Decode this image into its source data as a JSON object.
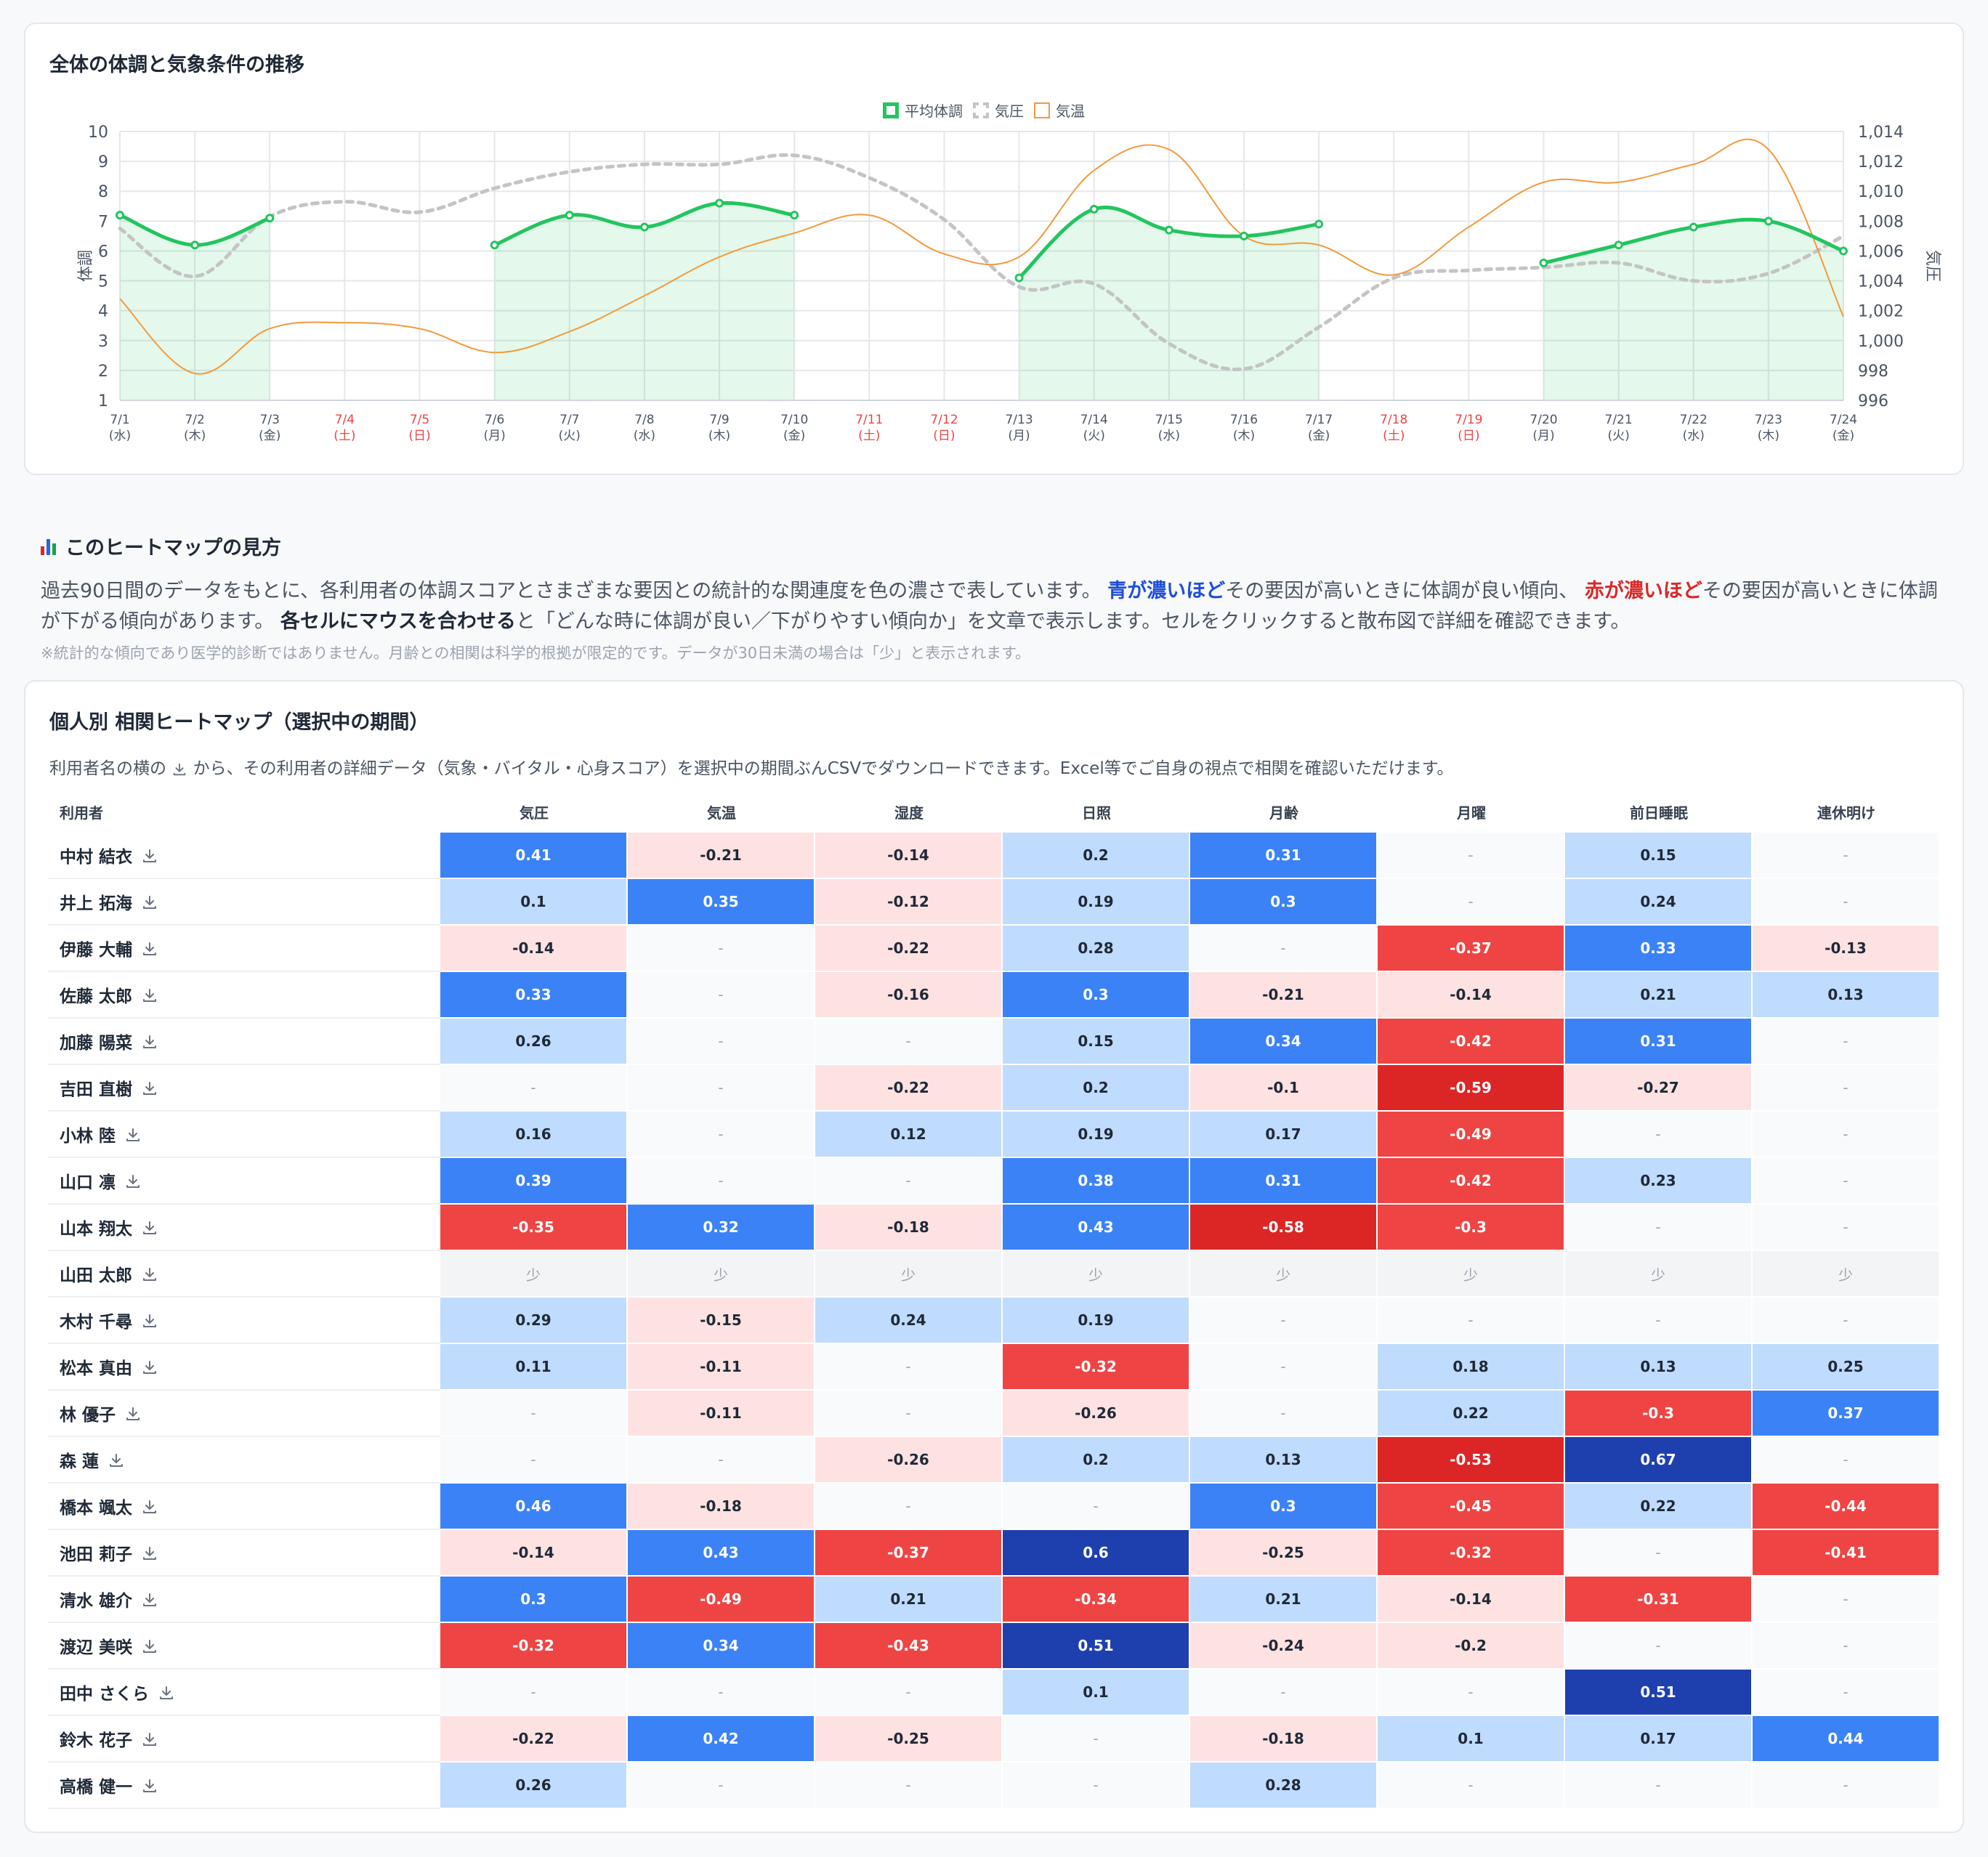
{
  "chart_card": {
    "title": "全体の体調と気象条件の推移",
    "legend": [
      {
        "label": "平均体調",
        "color": "#22c55e"
      },
      {
        "label": "気圧",
        "color": "#c4c4c4"
      },
      {
        "label": "気温",
        "color": "#f39a3c"
      }
    ],
    "y_left_label": "体調",
    "y_right_label": "気圧",
    "y_left_ticks": [
      "10",
      "9",
      "8",
      "7",
      "6",
      "5",
      "4",
      "3",
      "2",
      "1"
    ],
    "y_right_ticks": [
      "1,014",
      "1,012",
      "1,010",
      "1,008",
      "1,006",
      "1,004",
      "1,002",
      "1,000",
      "998",
      "996"
    ]
  },
  "chart_data": {
    "type": "line",
    "title": "全体の体調と気象条件の推移",
    "x": [
      {
        "date": "7/1",
        "dow": "(水)",
        "weekend": false
      },
      {
        "date": "7/2",
        "dow": "(木)",
        "weekend": false
      },
      {
        "date": "7/3",
        "dow": "(金)",
        "weekend": false
      },
      {
        "date": "7/4",
        "dow": "(土)",
        "weekend": true
      },
      {
        "date": "7/5",
        "dow": "(日)",
        "weekend": true
      },
      {
        "date": "7/6",
        "dow": "(月)",
        "weekend": false
      },
      {
        "date": "7/7",
        "dow": "(火)",
        "weekend": false
      },
      {
        "date": "7/8",
        "dow": "(水)",
        "weekend": false
      },
      {
        "date": "7/9",
        "dow": "(木)",
        "weekend": false
      },
      {
        "date": "7/10",
        "dow": "(金)",
        "weekend": false
      },
      {
        "date": "7/11",
        "dow": "(土)",
        "weekend": true
      },
      {
        "date": "7/12",
        "dow": "(日)",
        "weekend": true
      },
      {
        "date": "7/13",
        "dow": "(月)",
        "weekend": false
      },
      {
        "date": "7/14",
        "dow": "(火)",
        "weekend": false
      },
      {
        "date": "7/15",
        "dow": "(水)",
        "weekend": false
      },
      {
        "date": "7/16",
        "dow": "(木)",
        "weekend": false
      },
      {
        "date": "7/17",
        "dow": "(金)",
        "weekend": false
      },
      {
        "date": "7/18",
        "dow": "(土)",
        "weekend": true
      },
      {
        "date": "7/19",
        "dow": "(日)",
        "weekend": true
      },
      {
        "date": "7/20",
        "dow": "(月)",
        "weekend": false
      },
      {
        "date": "7/21",
        "dow": "(火)",
        "weekend": false
      },
      {
        "date": "7/22",
        "dow": "(水)",
        "weekend": false
      },
      {
        "date": "7/23",
        "dow": "(木)",
        "weekend": false
      },
      {
        "date": "7/24",
        "dow": "(金)",
        "weekend": false
      }
    ],
    "ylim_left": [
      1,
      10
    ],
    "ylim_right": [
      996,
      1014
    ],
    "grid": true,
    "legend_position": "top-center",
    "series": [
      {
        "name": "平均体調",
        "axis": "left",
        "color": "#22c55e",
        "values": [
          7.2,
          6.2,
          7.1,
          null,
          null,
          6.2,
          7.2,
          6.8,
          7.6,
          7.2,
          null,
          null,
          5.1,
          7.4,
          6.7,
          6.5,
          6.9,
          null,
          null,
          5.6,
          6.2,
          6.8,
          7.0,
          6.0
        ]
      },
      {
        "name": "気圧",
        "axis": "right",
        "color": "#c4c4c4",
        "values": [
          1007.5,
          1004.3,
          1008.3,
          1009.3,
          1008.6,
          1010.2,
          1011.3,
          1011.8,
          1011.8,
          1012.4,
          1010.9,
          1008.1,
          1003.6,
          1003.8,
          999.8,
          998.1,
          1000.9,
          1004.2,
          1004.7,
          1004.9,
          1005.2,
          1004.0,
          1004.5,
          1007.0
        ]
      },
      {
        "name": "気温",
        "axis": "left",
        "color": "#f39a3c",
        "values": [
          4.4,
          1.9,
          3.4,
          3.6,
          3.4,
          2.6,
          3.3,
          4.5,
          5.8,
          6.6,
          7.2,
          5.9,
          5.8,
          8.7,
          9.4,
          6.5,
          6.2,
          5.2,
          6.8,
          8.3,
          8.3,
          8.9,
          9.4,
          3.8
        ]
      }
    ]
  },
  "guide": {
    "title": "このヒートマップの見方",
    "p1": "過去90日間のデータをもとに、各利用者の体調スコアとさまざまな要因との統計的な関連度を色の濃さで表しています。",
    "blue_phrase": "青が濃いほど",
    "p2": "その要因が高いときに体調が良い傾向、",
    "red_phrase": "赤が濃いほど",
    "p3": "その要因が高いときに体調が下がる傾向があります。",
    "bold_phrase": "各セルにマウスを合わせる",
    "p4": "と「どんな時に体調が良い／下がりやすい傾向か」を文章で表示します。セルをクリックすると散布図で詳細を確認できます。",
    "note": "※統計的な傾向であり医学的診断ではありません。月齢との相関は科学的根拠が限定的です。データが30日未満の場合は「少」と表示されます。"
  },
  "heatmap": {
    "title": "個人別 相関ヒートマップ（選択中の期間）",
    "desc_before": "利用者名の横の",
    "desc_after": "から、その利用者の詳細データ（気象・バイタル・心身スコア）を選択中の期間ぶんCSVでダウンロードできます。Excel等でご自身の視点で相関を確認いただけます。",
    "name_header": "利用者",
    "columns": [
      "気圧",
      "気温",
      "湿度",
      "日照",
      "月齢",
      "月曜",
      "前日睡眠",
      "連休明け"
    ],
    "rows": [
      {
        "name": "中村 結衣",
        "values": [
          "0.41",
          "-0.21",
          "-0.14",
          "0.2",
          "0.31",
          "-",
          "0.15",
          "-"
        ]
      },
      {
        "name": "井上 拓海",
        "values": [
          "0.1",
          "0.35",
          "-0.12",
          "0.19",
          "0.3",
          "-",
          "0.24",
          "-"
        ]
      },
      {
        "name": "伊藤 大輔",
        "values": [
          "-0.14",
          "-",
          "-0.22",
          "0.28",
          "-",
          "-0.37",
          "0.33",
          "-0.13"
        ]
      },
      {
        "name": "佐藤 太郎",
        "values": [
          "0.33",
          "-",
          "-0.16",
          "0.3",
          "-0.21",
          "-0.14",
          "0.21",
          "0.13"
        ]
      },
      {
        "name": "加藤 陽菜",
        "values": [
          "0.26",
          "-",
          "-",
          "0.15",
          "0.34",
          "-0.42",
          "0.31",
          "-"
        ]
      },
      {
        "name": "吉田 直樹",
        "values": [
          "-",
          "-",
          "-0.22",
          "0.2",
          "-0.1",
          "-0.59",
          "-0.27",
          "-"
        ]
      },
      {
        "name": "小林 陸",
        "values": [
          "0.16",
          "-",
          "0.12",
          "0.19",
          "0.17",
          "-0.49",
          "-",
          "-"
        ]
      },
      {
        "name": "山口 凛",
        "values": [
          "0.39",
          "-",
          "-",
          "0.38",
          "0.31",
          "-0.42",
          "0.23",
          "-"
        ]
      },
      {
        "name": "山本 翔太",
        "values": [
          "-0.35",
          "0.32",
          "-0.18",
          "0.43",
          "-0.58",
          "-0.3",
          "-",
          "-"
        ]
      },
      {
        "name": "山田 太郎",
        "values": [
          "少",
          "少",
          "少",
          "少",
          "少",
          "少",
          "少",
          "少"
        ]
      },
      {
        "name": "木村 千尋",
        "values": [
          "0.29",
          "-0.15",
          "0.24",
          "0.19",
          "-",
          "-",
          "-",
          "-"
        ]
      },
      {
        "name": "松本 真由",
        "values": [
          "0.11",
          "-0.11",
          "-",
          "-0.32",
          "-",
          "0.18",
          "0.13",
          "0.25"
        ]
      },
      {
        "name": "林 優子",
        "values": [
          "-",
          "-0.11",
          "-",
          "-0.26",
          "-",
          "0.22",
          "-0.3",
          "0.37"
        ]
      },
      {
        "name": "森 蓮",
        "values": [
          "-",
          "-",
          "-0.26",
          "0.2",
          "0.13",
          "-0.53",
          "0.67",
          "-"
        ]
      },
      {
        "name": "橋本 颯太",
        "values": [
          "0.46",
          "-0.18",
          "-",
          "-",
          "0.3",
          "-0.45",
          "0.22",
          "-0.44"
        ]
      },
      {
        "name": "池田 莉子",
        "values": [
          "-0.14",
          "0.43",
          "-0.37",
          "0.6",
          "-0.25",
          "-0.32",
          "-",
          "-0.41"
        ]
      },
      {
        "name": "清水 雄介",
        "values": [
          "0.3",
          "-0.49",
          "0.21",
          "-0.34",
          "0.21",
          "-0.14",
          "-0.31",
          "-"
        ]
      },
      {
        "name": "渡辺 美咲",
        "values": [
          "-0.32",
          "0.34",
          "-0.43",
          "0.51",
          "-0.24",
          "-0.2",
          "-",
          "-"
        ]
      },
      {
        "name": "田中 さくら",
        "values": [
          "-",
          "-",
          "-",
          "0.1",
          "-",
          "-",
          "0.51",
          "-"
        ]
      },
      {
        "name": "鈴木 花子",
        "values": [
          "-0.22",
          "0.42",
          "-0.25",
          "-",
          "-0.18",
          "0.1",
          "0.17",
          "0.44"
        ]
      },
      {
        "name": "高橋 健一",
        "values": [
          "0.26",
          "-",
          "-",
          "-",
          "0.28",
          "-",
          "-",
          "-"
        ]
      }
    ]
  }
}
